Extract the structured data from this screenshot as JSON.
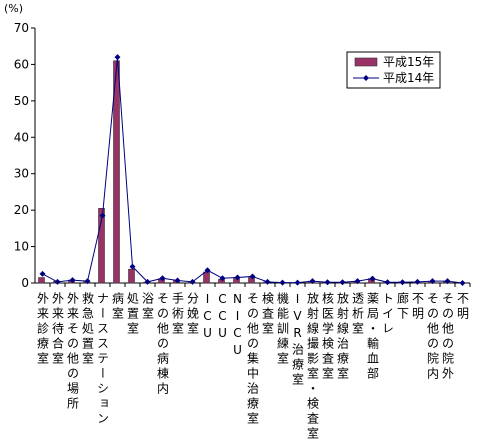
{
  "chart_data": {
    "type": "bar_line",
    "y_label": "(%)",
    "categories": [
      "外来診療室",
      "外来待合室",
      "外来その他の場所",
      "救急処置室",
      "ナースステーション",
      "病室",
      "処置室",
      "浴室",
      "その他の病棟内",
      "手術室",
      "分娩室",
      "ICU",
      "CCU",
      "NICU",
      "その他の集中治療室",
      "検査室",
      "機能訓練室",
      "IVR治療室",
      "放射線撮影室・検査室",
      "核医学検査室",
      "放射線治療室",
      "透析室",
      "薬局・輸血部",
      "トイレ",
      "廊下",
      "不明",
      "その他の院内",
      "その他の院外",
      "不明"
    ],
    "series": [
      {
        "name": "平成15年",
        "kind": "bar",
        "color": "#993366",
        "values": [
          1.5,
          0.5,
          0.8,
          0.3,
          20.5,
          61,
          3.8,
          0.2,
          1.2,
          0.8,
          0.2,
          3,
          1,
          1.5,
          1.5,
          0.3,
          0.1,
          0.1,
          0.5,
          0.1,
          0.1,
          0.3,
          1.2,
          0.3,
          0.3,
          0.2,
          0.4,
          0.3,
          0
        ]
      },
      {
        "name": "平成14年",
        "kind": "line",
        "color": "#000080",
        "values": [
          2.5,
          0.3,
          0.8,
          0.5,
          18.5,
          62,
          4.5,
          0.3,
          1.3,
          0.7,
          0.3,
          3.5,
          1.3,
          1.5,
          1.8,
          0.3,
          0.1,
          0.1,
          0.5,
          0.2,
          0.2,
          0.5,
          1.2,
          0.2,
          0.2,
          0.3,
          0.5,
          0.5,
          0
        ]
      }
    ],
    "ylim": [
      0,
      70
    ],
    "yticks": [
      0,
      10,
      20,
      30,
      40,
      50,
      60,
      70
    ],
    "grid": false,
    "legend": "upper-right"
  }
}
